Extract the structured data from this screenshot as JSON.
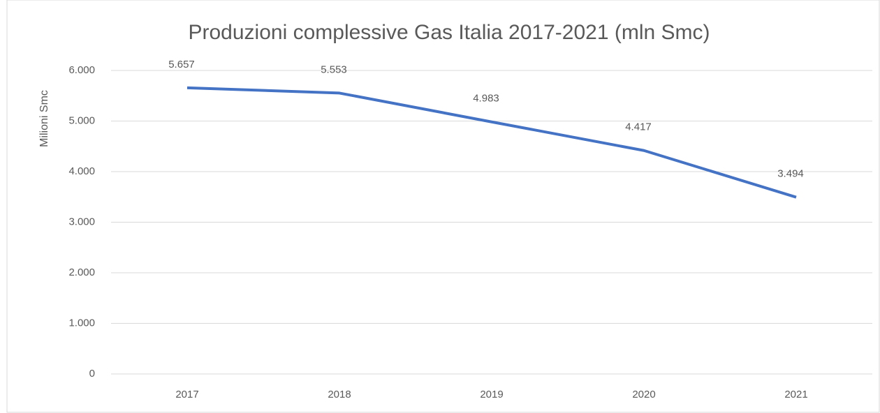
{
  "chart_data": {
    "type": "line",
    "title": "Produzioni complessive Gas Italia 2017-2021 (mln Smc)",
    "y_label": "Milioni Smc",
    "categories": [
      "2017",
      "2018",
      "2019",
      "2020",
      "2021"
    ],
    "values": [
      5657,
      5553,
      4983,
      4417,
      3494
    ],
    "value_labels": [
      "5.657",
      "5.553",
      "4.983",
      "4.417",
      "3.494"
    ],
    "color": "#4472c4",
    "ylim": [
      0,
      6000
    ],
    "yticks": [
      0,
      {
        "value": 1000,
        "label": "1.000"
      },
      {
        "value": 2000,
        "label": "2.000"
      },
      {
        "value": 3000,
        "label": "3.000"
      },
      {
        "value": 4000,
        "label": "4.000"
      },
      {
        "value": 5000,
        "label": "5.000"
      },
      {
        "value": 6000,
        "label": "6.000"
      }
    ],
    "grid": true
  }
}
